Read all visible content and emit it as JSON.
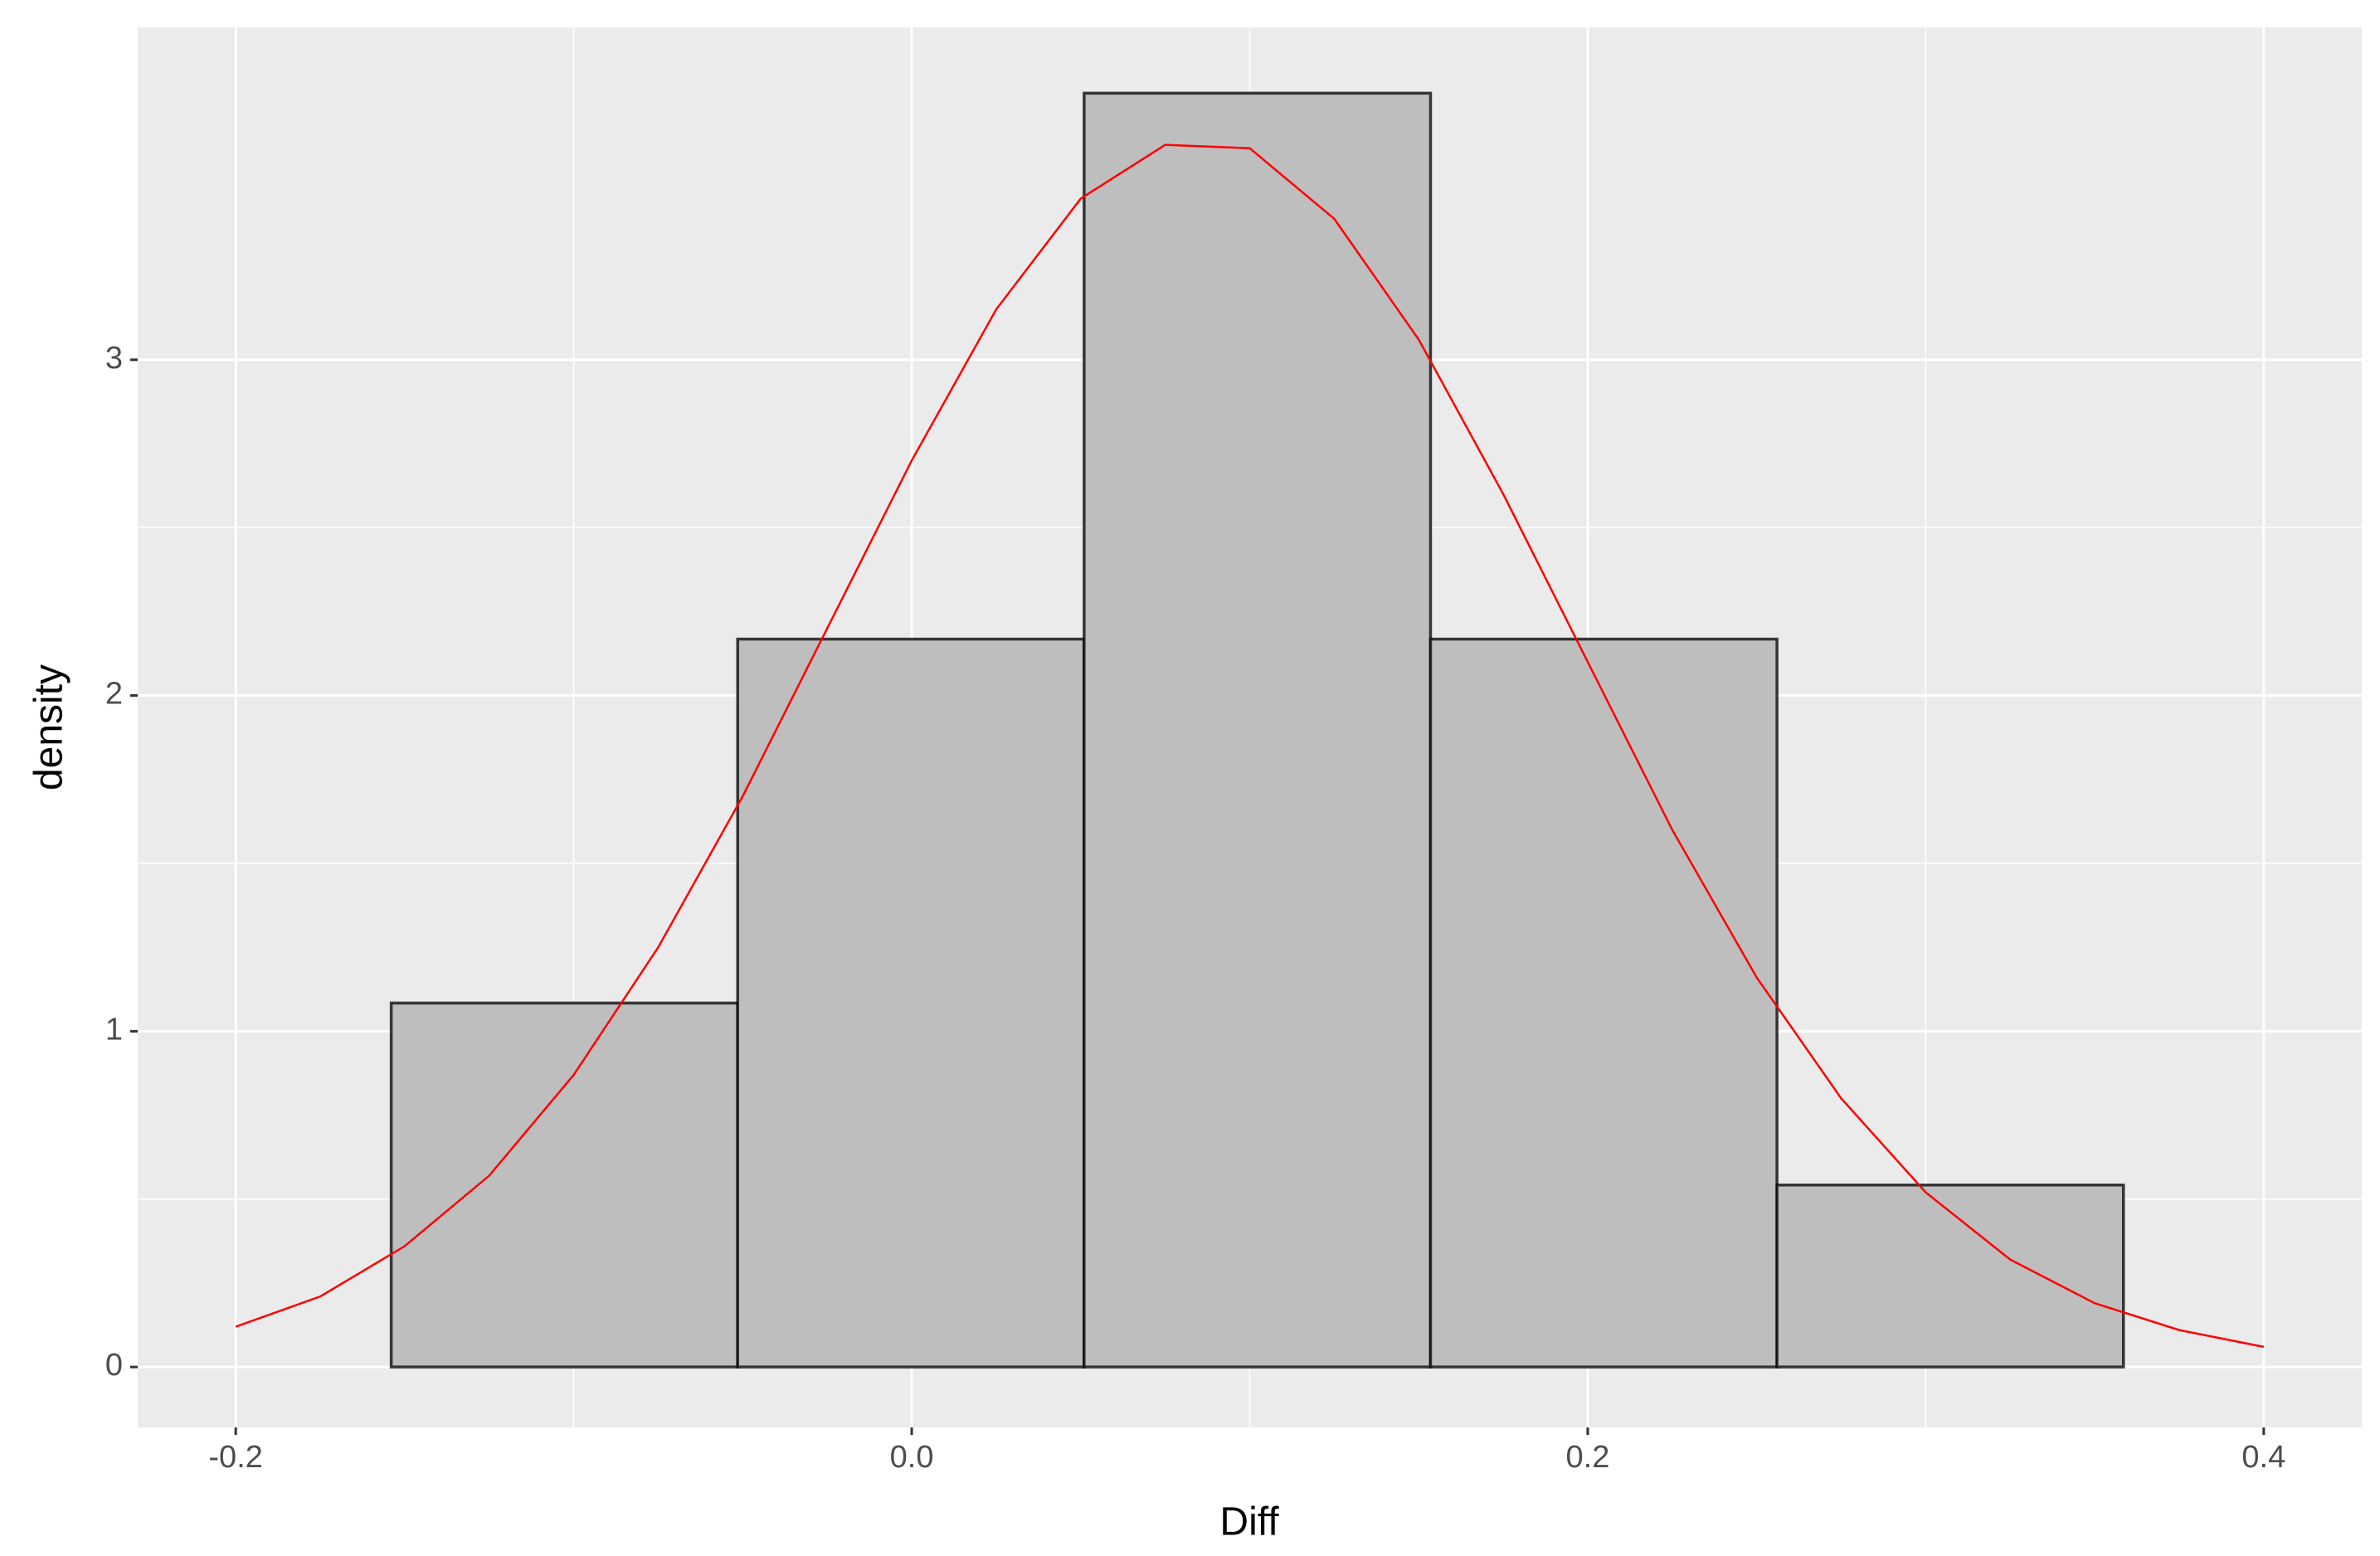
{
  "chart_data": {
    "type": "histogram",
    "xlabel": "Diff",
    "ylabel": "density",
    "bins": [
      -0.154,
      -0.0515,
      0.051,
      0.1535,
      0.256,
      0.3585
    ],
    "values": [
      1.084,
      2.168,
      3.794,
      2.168,
      0.542
    ],
    "color": "#bebebe",
    "edgecolor": "#000000",
    "xlim": [
      -0.229,
      0.429
    ],
    "ylim": [
      -0.18,
      3.99
    ],
    "xticks": [
      -0.2,
      {
        "value": 0,
        "label": "0.0"
      },
      0.2,
      0.4
    ],
    "yticks": [
      0,
      1,
      2,
      3
    ],
    "grid": true,
    "curve": {
      "type": "line",
      "color": "#ff0000",
      "x": [
        -0.2,
        -0.175,
        -0.15,
        -0.125,
        -0.1,
        -0.075,
        -0.05,
        -0.025,
        0,
        0.025,
        0.05,
        0.075,
        0.1,
        0.125,
        0.15,
        0.175,
        0.2,
        0.225,
        0.25,
        0.275,
        0.3,
        0.325,
        0.35,
        0.375,
        0.4
      ],
      "values": [
        0.12,
        0.21,
        0.36,
        0.57,
        0.87,
        1.25,
        1.7,
        2.2,
        2.7,
        3.15,
        3.48,
        3.64,
        3.63,
        3.42,
        3.06,
        2.6,
        2.1,
        1.6,
        1.16,
        0.8,
        0.52,
        0.32,
        0.19,
        0.11,
        0.06
      ]
    }
  }
}
